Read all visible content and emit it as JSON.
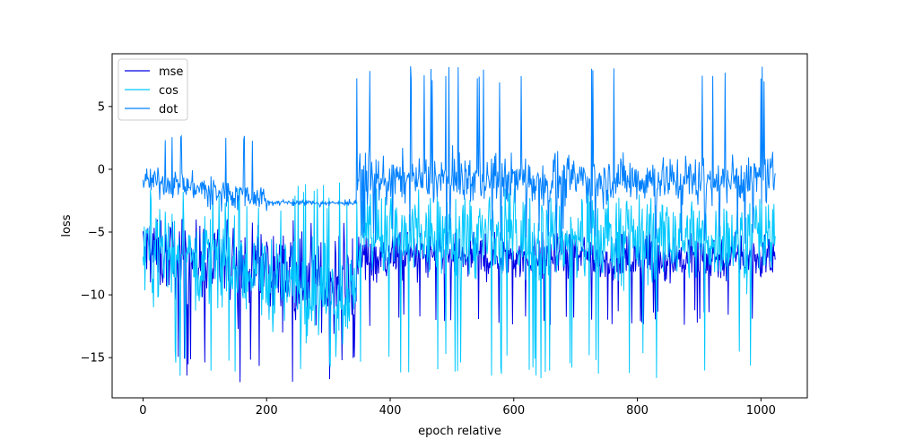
{
  "chart_data": {
    "type": "line",
    "title": "",
    "xlabel": "epoch relative",
    "ylabel": "loss",
    "xlim": [
      -50,
      1075
    ],
    "ylim": [
      -18.2,
      9.2
    ],
    "xticks": [
      0,
      200,
      400,
      600,
      800,
      1000
    ],
    "yticks": [
      -15,
      -10,
      -5,
      0,
      5
    ],
    "grid": false,
    "legend_position": "top-left",
    "series": [
      {
        "name": "mse",
        "color": "#0000e6",
        "segments": [
          {
            "x_start": 0,
            "x_end": 345,
            "mean_start": -6.5,
            "mean_end": -9.5,
            "amplitude": 2.6,
            "min": -17.0,
            "max": -4.0
          },
          {
            "x_start": 346,
            "x_end": 1023,
            "mean_start": -7.0,
            "mean_end": -7.0,
            "amplitude": 1.6,
            "min": -12.5,
            "max": -5.0
          }
        ]
      },
      {
        "name": "cos",
        "color": "#00c8ff",
        "segments": [
          {
            "x_start": 0,
            "x_end": 345,
            "mean_start": -6.0,
            "mean_end": -10.5,
            "amplitude": 3.2,
            "min": -16.7,
            "max": -1.0
          },
          {
            "x_start": 346,
            "x_end": 1023,
            "mean_start": -5.5,
            "mean_end": -5.5,
            "amplitude": 2.8,
            "min": -16.7,
            "max": -1.5
          }
        ]
      },
      {
        "name": "dot",
        "color": "#0080ff",
        "segments": [
          {
            "x_start": 0,
            "x_end": 200,
            "mean_start": -0.8,
            "mean_end": -2.3,
            "amplitude": 0.9,
            "min": -3.5,
            "max": 2.8
          },
          {
            "x_start": 201,
            "x_end": 345,
            "mean_start": -2.6,
            "mean_end": -2.7,
            "amplitude": 0.15,
            "min": -3.0,
            "max": -2.3
          },
          {
            "x_start": 346,
            "x_end": 1023,
            "mean_start": -0.8,
            "mean_end": -0.8,
            "amplitude": 1.6,
            "min": -6.0,
            "max": 8.2
          }
        ]
      }
    ]
  }
}
